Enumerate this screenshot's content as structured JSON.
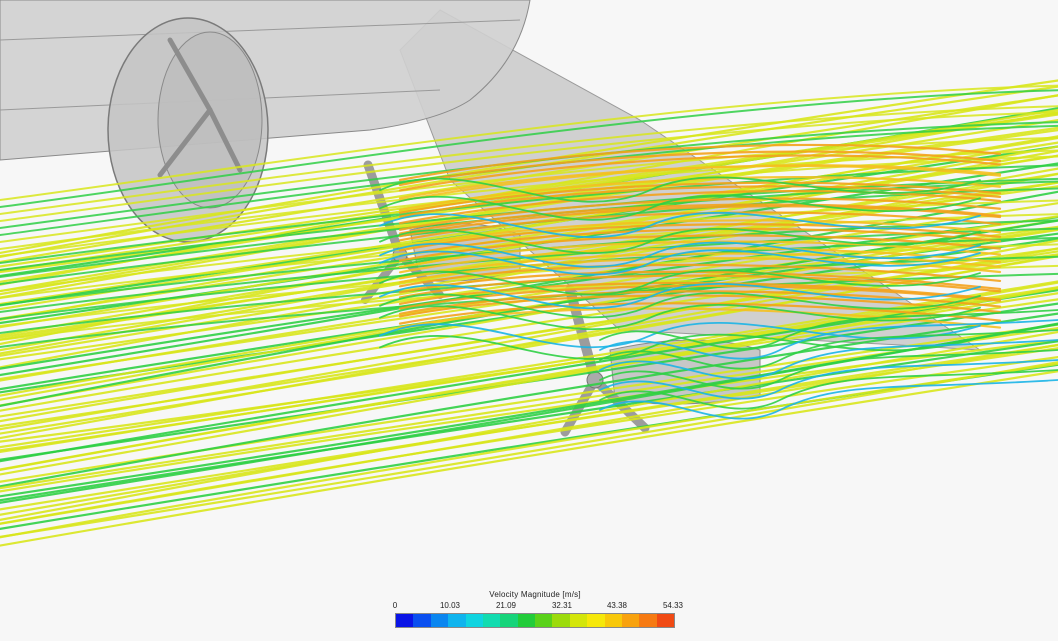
{
  "legend": {
    "title": "Velocity Magnitude [m/s]",
    "ticks": [
      "0",
      "10.03",
      "21.09",
      "32.31",
      "43.38",
      "54.33"
    ],
    "colors": [
      "#0a14e6",
      "#0a4ff0",
      "#0a86f0",
      "#0fb4ee",
      "#10d4e0",
      "#12dcb0",
      "#16d47a",
      "#22cc3a",
      "#5ad21a",
      "#9cdb0c",
      "#d4e60a",
      "#f6e80a",
      "#f8c80a",
      "#f8a20e",
      "#f67a12",
      "#f04a14"
    ]
  },
  "scene": {
    "streamline_colors": {
      "low": "#1ab4e6",
      "mid": "#2fcf45",
      "freestream": "#d8e61c",
      "high": "#f4c020",
      "peak": "#f3a21c"
    },
    "body_color": "#bdbdbd"
  }
}
